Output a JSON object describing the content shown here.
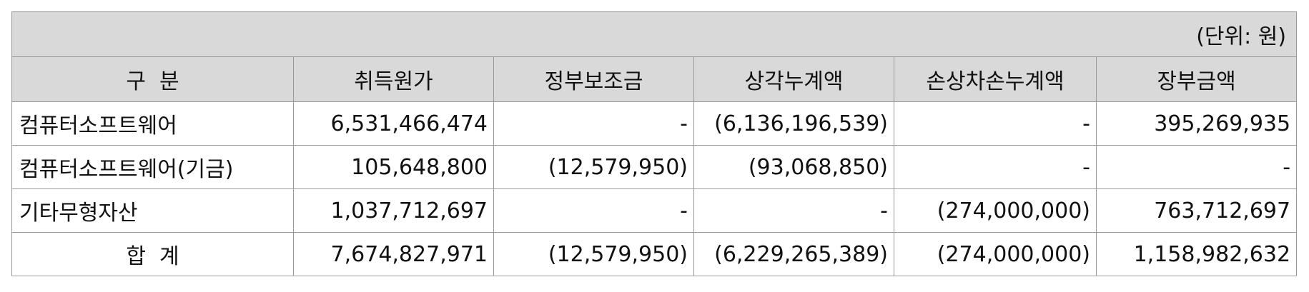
{
  "table": {
    "unit": "(단위: 원)",
    "headers": [
      "구  분",
      "취득원가",
      "정부보조금",
      "상각누계액",
      "손상차손누계액",
      "장부금액"
    ],
    "rows": [
      [
        "컴퓨터소프트웨어",
        "6,531,466,474",
        "-",
        "(6,136,196,539)",
        "-",
        "395,269,935"
      ],
      [
        "컴퓨터소프트웨어(기금)",
        "105,648,800",
        "(12,579,950)",
        "(93,068,850)",
        "-",
        "-"
      ],
      [
        "기타무형자산",
        "1,037,712,697",
        "-",
        "-",
        "(274,000,000)",
        "763,712,697"
      ],
      [
        "합  계",
        "7,674,827,971",
        "(12,579,950)",
        "(6,229,265,389)",
        "(274,000,000)",
        "1,158,982,632"
      ]
    ]
  }
}
